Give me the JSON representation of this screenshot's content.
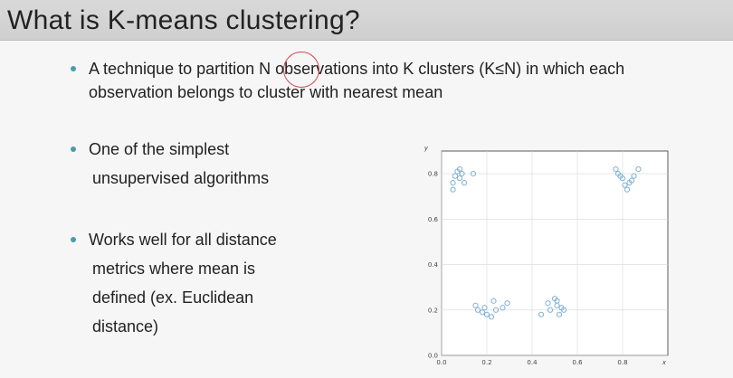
{
  "slide": {
    "title": "What is K-means clustering?",
    "bullets": [
      {
        "lines": [
          "A technique to partition N observations into K clusters (K≤N) in which each",
          "observation belongs to cluster with nearest mean"
        ]
      },
      {
        "lines": [
          "One of the simplest",
          "unsupervised algorithms"
        ]
      },
      {
        "lines": [
          "Works well for all distance",
          "metrics where mean is",
          "defined (ex. Euclidean",
          "distance)"
        ]
      }
    ]
  },
  "colors": {
    "bullet": "#4a9bb0",
    "annotation_circle": "#d24a4a",
    "points": "#7fb2d6"
  },
  "chart_data": {
    "type": "scatter",
    "xlabel": "x",
    "ylabel": "y",
    "xlim": [
      0,
      1
    ],
    "ylim": [
      0,
      0.9
    ],
    "xticks": [
      "0.0",
      "0.2",
      "0.4",
      "0.6",
      "0.8"
    ],
    "yticks": [
      "0.0",
      "0.2",
      "0.4",
      "0.6",
      "0.8"
    ],
    "grid": true,
    "points": [
      [
        0.05,
        0.73
      ],
      [
        0.05,
        0.76
      ],
      [
        0.06,
        0.79
      ],
      [
        0.07,
        0.81
      ],
      [
        0.08,
        0.82
      ],
      [
        0.08,
        0.78
      ],
      [
        0.09,
        0.8
      ],
      [
        0.1,
        0.76
      ],
      [
        0.14,
        0.8
      ],
      [
        0.15,
        0.22
      ],
      [
        0.16,
        0.2
      ],
      [
        0.18,
        0.19
      ],
      [
        0.19,
        0.21
      ],
      [
        0.2,
        0.18
      ],
      [
        0.22,
        0.17
      ],
      [
        0.23,
        0.24
      ],
      [
        0.24,
        0.2
      ],
      [
        0.27,
        0.21
      ],
      [
        0.29,
        0.23
      ],
      [
        0.44,
        0.18
      ],
      [
        0.47,
        0.23
      ],
      [
        0.48,
        0.2
      ],
      [
        0.5,
        0.25
      ],
      [
        0.51,
        0.22
      ],
      [
        0.52,
        0.18
      ],
      [
        0.53,
        0.21
      ],
      [
        0.54,
        0.2
      ],
      [
        0.51,
        0.24
      ],
      [
        0.77,
        0.82
      ],
      [
        0.78,
        0.8
      ],
      [
        0.79,
        0.79
      ],
      [
        0.8,
        0.78
      ],
      [
        0.81,
        0.75
      ],
      [
        0.82,
        0.73
      ],
      [
        0.83,
        0.76
      ],
      [
        0.84,
        0.77
      ],
      [
        0.85,
        0.79
      ],
      [
        0.87,
        0.82
      ]
    ]
  }
}
